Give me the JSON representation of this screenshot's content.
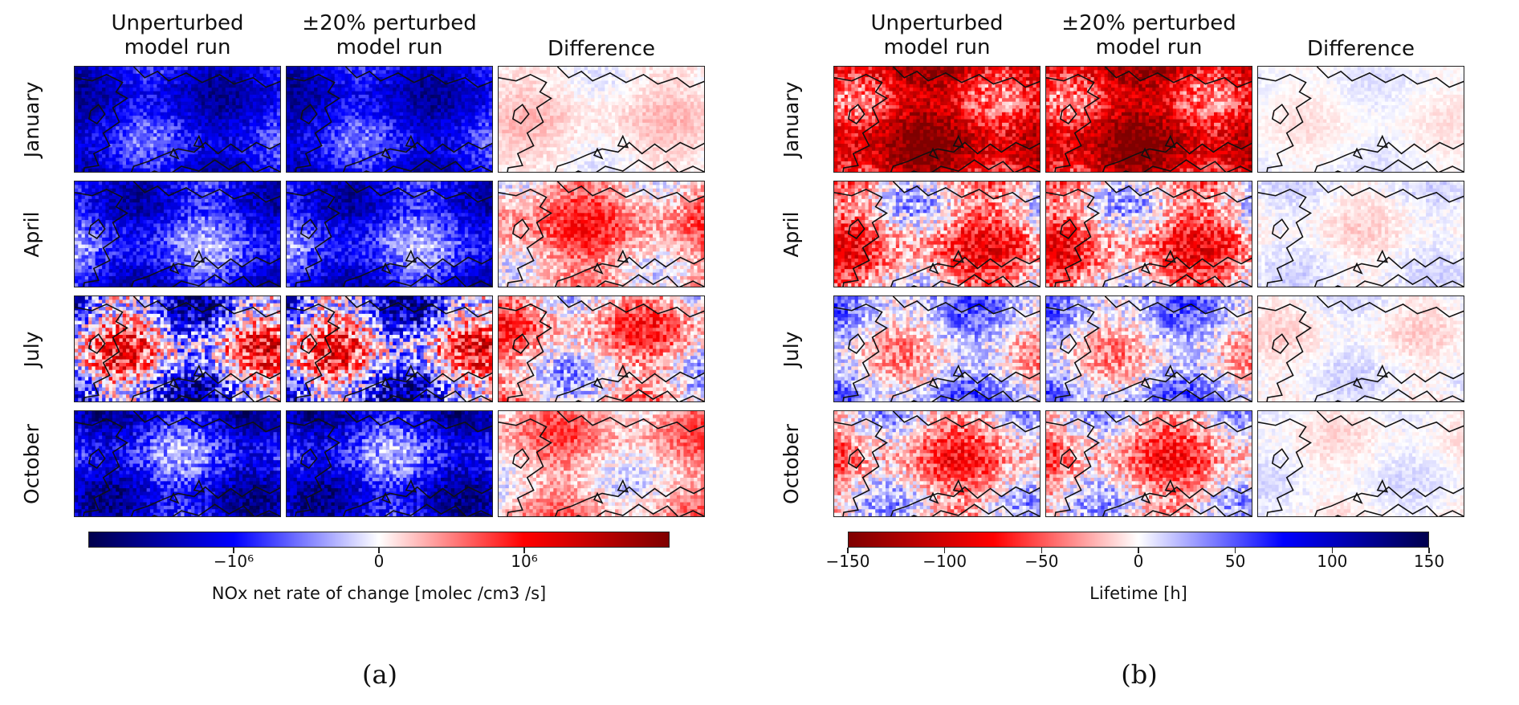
{
  "chart_data": [
    {
      "type": "heatmap",
      "panel_label": "(a)",
      "columns": [
        "Unperturbed\nmodel run",
        "±20% perturbed\nmodel run",
        "Difference"
      ],
      "rows": [
        "January",
        "April",
        "July",
        "October"
      ],
      "colorbar": {
        "label": "NOx net rate of change [molec /cm3 /s]",
        "cmap": "seismic",
        "range": [
          -2000000,
          2000000
        ],
        "ticks": [
          {
            "label": "−10⁶",
            "value": -1000000
          },
          {
            "label": "0",
            "value": 0
          },
          {
            "label": "10⁶",
            "value": 1000000
          }
        ]
      },
      "cells": [
        [
          {
            "bias": -0.55,
            "spread": 0.35,
            "seed": 11
          },
          {
            "bias": -0.55,
            "spread": 0.35,
            "seed": 11
          },
          {
            "bias": 0.05,
            "spread": 0.12,
            "seed": 13
          }
        ],
        [
          {
            "bias": -0.45,
            "spread": 0.4,
            "seed": 21
          },
          {
            "bias": -0.45,
            "spread": 0.4,
            "seed": 21
          },
          {
            "bias": 0.22,
            "spread": 0.35,
            "seed": 23
          }
        ],
        [
          {
            "bias": -0.1,
            "spread": 0.85,
            "seed": 31
          },
          {
            "bias": -0.1,
            "spread": 0.85,
            "seed": 31
          },
          {
            "bias": 0.12,
            "spread": 0.45,
            "seed": 33
          }
        ],
        [
          {
            "bias": -0.5,
            "spread": 0.45,
            "seed": 41
          },
          {
            "bias": -0.5,
            "spread": 0.45,
            "seed": 41
          },
          {
            "bias": 0.14,
            "spread": 0.3,
            "seed": 43
          }
        ]
      ]
    },
    {
      "type": "heatmap",
      "panel_label": "(b)",
      "columns": [
        "Unperturbed\nmodel run",
        "±20% perturbed\nmodel run",
        "Difference"
      ],
      "rows": [
        "January",
        "April",
        "July",
        "October"
      ],
      "colorbar": {
        "label": "Lifetime [h]",
        "cmap": "seismic_r",
        "range": [
          -150,
          150
        ],
        "ticks": [
          {
            "label": "−150",
            "value": -150
          },
          {
            "label": "−100",
            "value": -100
          },
          {
            "label": "−50",
            "value": -50
          },
          {
            "label": "0",
            "value": 0
          },
          {
            "label": "50",
            "value": 50
          },
          {
            "label": "100",
            "value": 100
          },
          {
            "label": "150",
            "value": 150
          }
        ]
      },
      "cells": [
        [
          {
            "bias": -0.65,
            "spread": 0.55,
            "seed": 51
          },
          {
            "bias": -0.65,
            "spread": 0.55,
            "seed": 51
          },
          {
            "bias": 0.0,
            "spread": 0.08,
            "seed": 53
          }
        ],
        [
          {
            "bias": -0.2,
            "spread": 0.5,
            "seed": 61
          },
          {
            "bias": -0.2,
            "spread": 0.5,
            "seed": 61
          },
          {
            "bias": 0.0,
            "spread": 0.12,
            "seed": 63
          }
        ],
        [
          {
            "bias": 0.05,
            "spread": 0.4,
            "seed": 71
          },
          {
            "bias": 0.05,
            "spread": 0.4,
            "seed": 71
          },
          {
            "bias": 0.0,
            "spread": 0.12,
            "seed": 73
          }
        ],
        [
          {
            "bias": -0.15,
            "spread": 0.45,
            "seed": 81
          },
          {
            "bias": -0.15,
            "spread": 0.45,
            "seed": 81
          },
          {
            "bias": 0.0,
            "spread": 0.1,
            "seed": 83
          }
        ]
      ]
    }
  ]
}
